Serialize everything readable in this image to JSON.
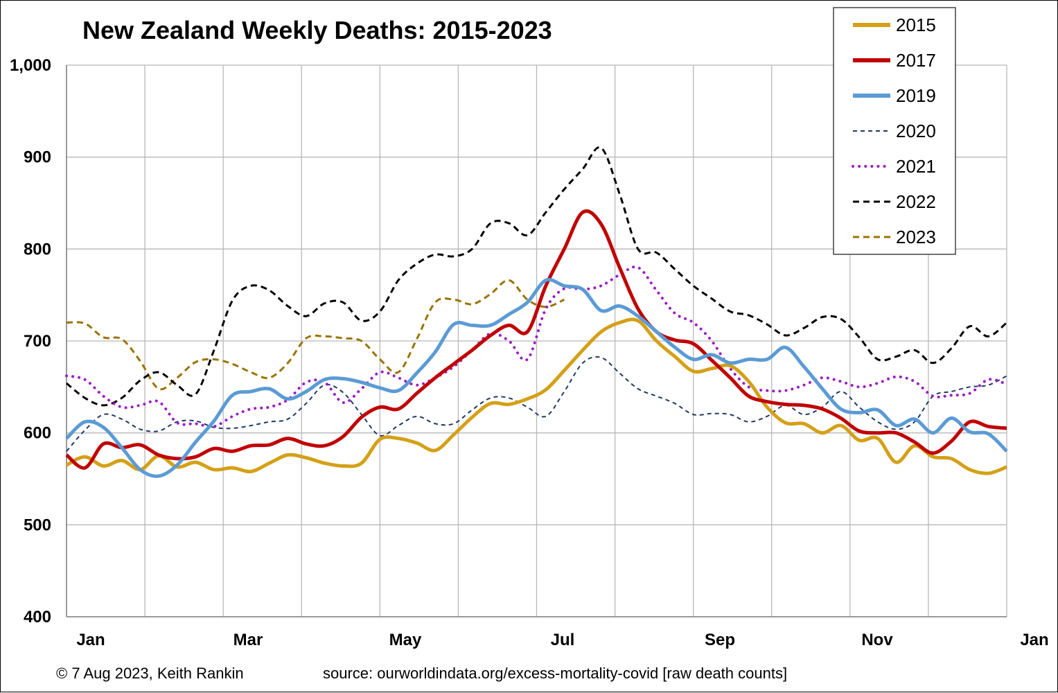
{
  "footer": {
    "copyright": "© 7 Aug 2023, Keith Rankin",
    "source": "source: ourworldindata.org/excess-mortality-covid [raw death counts]"
  },
  "chart_data": {
    "type": "line",
    "title": "New Zealand Weekly Deaths: 2015-2023",
    "xlabel": "",
    "ylabel": "",
    "ylim": [
      400,
      1000
    ],
    "y_ticks": [
      "400",
      "500",
      "600",
      "700",
      "800",
      "900",
      "1,000"
    ],
    "x_ticks": [
      "Jan",
      "Mar",
      "May",
      "Jul",
      "Sep",
      "Nov",
      "Jan"
    ],
    "x_unit": "week of year",
    "xlim": [
      1,
      52
    ],
    "grid": true,
    "legend_position": "top-right",
    "series": [
      {
        "name": "2015",
        "color": "#D4A017",
        "style": "solid",
        "width": 5,
        "x": [
          1,
          2,
          3,
          4,
          5,
          6,
          7,
          8,
          9,
          10,
          11,
          12,
          13,
          14,
          15,
          16,
          17,
          18,
          19,
          20,
          21,
          22,
          23,
          24,
          25,
          26,
          27,
          28,
          29,
          30,
          31,
          32,
          33,
          34,
          35,
          36,
          37,
          38,
          39,
          40,
          41,
          42,
          43,
          44,
          45,
          46,
          47,
          48,
          49,
          50,
          51,
          52
        ],
        "y": [
          565,
          574,
          564,
          570,
          560,
          575,
          563,
          568,
          560,
          562,
          558,
          567,
          576,
          573,
          567,
          564,
          567,
          593,
          594,
          589,
          581,
          598,
          617,
          632,
          631,
          637,
          647,
          668,
          690,
          710,
          720,
          722,
          700,
          683,
          667,
          670,
          673,
          656,
          628,
          611,
          610,
          600,
          608,
          592,
          594,
          568,
          586,
          574,
          572,
          560,
          556,
          563
        ]
      },
      {
        "name": "2017",
        "color": "#C00000",
        "style": "solid",
        "width": 5,
        "x": [
          1,
          2,
          3,
          4,
          5,
          6,
          7,
          8,
          9,
          10,
          11,
          12,
          13,
          14,
          15,
          16,
          17,
          18,
          19,
          20,
          21,
          22,
          23,
          24,
          25,
          26,
          27,
          28,
          29,
          30,
          31,
          32,
          33,
          34,
          35,
          36,
          37,
          38,
          39,
          40,
          41,
          42,
          43,
          44,
          45,
          46,
          47,
          48,
          49,
          50,
          51,
          52
        ],
        "y": [
          576,
          562,
          588,
          584,
          587,
          576,
          572,
          574,
          583,
          580,
          586,
          587,
          594,
          588,
          586,
          596,
          617,
          628,
          626,
          643,
          660,
          675,
          690,
          706,
          717,
          710,
          760,
          800,
          840,
          827,
          780,
          735,
          710,
          701,
          697,
          679,
          660,
          640,
          634,
          631,
          630,
          626,
          616,
          602,
          600,
          600,
          590,
          578,
          591,
          612,
          607,
          605
        ]
      },
      {
        "name": "2019",
        "color": "#5B9BD5",
        "style": "solid",
        "width": 5,
        "x": [
          1,
          2,
          3,
          4,
          5,
          6,
          7,
          8,
          9,
          10,
          11,
          12,
          13,
          14,
          15,
          16,
          17,
          18,
          19,
          20,
          21,
          22,
          23,
          24,
          25,
          26,
          27,
          28,
          29,
          30,
          31,
          32,
          33,
          34,
          35,
          36,
          37,
          38,
          39,
          40,
          41,
          42,
          43,
          44,
          45,
          46,
          47,
          48,
          49,
          50,
          51,
          52
        ],
        "y": [
          594,
          612,
          606,
          584,
          560,
          553,
          565,
          590,
          613,
          641,
          645,
          648,
          637,
          645,
          658,
          659,
          655,
          649,
          646,
          665,
          688,
          718,
          717,
          717,
          729,
          742,
          766,
          760,
          756,
          733,
          738,
          727,
          710,
          693,
          680,
          685,
          676,
          680,
          680,
          693,
          672,
          648,
          626,
          622,
          625,
          608,
          615,
          600,
          616,
          601,
          599,
          580
        ]
      },
      {
        "name": "2020",
        "color": "#1F3864",
        "style": "dashed-fine",
        "width": 2,
        "x": [
          1,
          2,
          3,
          4,
          5,
          6,
          7,
          8,
          9,
          10,
          11,
          12,
          13,
          14,
          15,
          16,
          17,
          18,
          19,
          20,
          21,
          22,
          23,
          24,
          25,
          26,
          27,
          28,
          29,
          30,
          31,
          32,
          33,
          34,
          35,
          36,
          37,
          38,
          39,
          40,
          41,
          42,
          43,
          44,
          45,
          46,
          47,
          48,
          49,
          50,
          51,
          52
        ],
        "y": [
          580,
          603,
          620,
          615,
          604,
          602,
          612,
          613,
          606,
          605,
          608,
          612,
          615,
          632,
          652,
          644,
          620,
          597,
          608,
          618,
          610,
          610,
          625,
          638,
          638,
          628,
          618,
          645,
          676,
          682,
          665,
          648,
          640,
          632,
          620,
          621,
          620,
          612,
          618,
          630,
          620,
          628,
          645,
          628,
          612,
          604,
          612,
          640,
          645,
          650,
          652,
          662
        ]
      },
      {
        "name": "2021",
        "color": "#9B1BC7",
        "style": "dotted",
        "width": 4,
        "x": [
          1,
          2,
          3,
          4,
          5,
          6,
          7,
          8,
          9,
          10,
          11,
          12,
          13,
          14,
          15,
          16,
          17,
          18,
          19,
          20,
          21,
          22,
          23,
          24,
          25,
          26,
          27,
          28,
          29,
          30,
          31,
          32,
          33,
          34,
          35,
          36,
          37,
          38,
          39,
          40,
          41,
          42,
          43,
          44,
          45,
          46,
          47,
          48,
          49,
          50,
          51,
          52
        ],
        "y": [
          662,
          658,
          640,
          628,
          630,
          634,
          611,
          610,
          607,
          618,
          626,
          628,
          636,
          655,
          655,
          633,
          648,
          666,
          660,
          652,
          660,
          672,
          690,
          708,
          700,
          680,
          735,
          757,
          756,
          760,
          772,
          780,
          755,
          730,
          720,
          700,
          670,
          650,
          646,
          646,
          652,
          660,
          656,
          650,
          654,
          661,
          656,
          640,
          641,
          643,
          658,
          653
        ]
      },
      {
        "name": "2022",
        "color": "#000000",
        "style": "dashed",
        "width": 3,
        "x": [
          1,
          2,
          3,
          4,
          5,
          6,
          7,
          8,
          9,
          10,
          11,
          12,
          13,
          14,
          15,
          16,
          17,
          18,
          19,
          20,
          21,
          22,
          23,
          24,
          25,
          26,
          27,
          28,
          29,
          30,
          31,
          32,
          33,
          34,
          35,
          36,
          37,
          38,
          39,
          40,
          41,
          42,
          43,
          44,
          45,
          46,
          47,
          48,
          49,
          50,
          51,
          52
        ],
        "y": [
          654,
          638,
          630,
          638,
          657,
          666,
          652,
          642,
          690,
          744,
          760,
          755,
          738,
          727,
          741,
          742,
          722,
          732,
          766,
          784,
          794,
          792,
          800,
          828,
          828,
          815,
          840,
          865,
          887,
          910,
          860,
          800,
          796,
          778,
          760,
          746,
          732,
          728,
          718,
          706,
          714,
          726,
          724,
          704,
          680,
          683,
          690,
          676,
          692,
          716,
          705,
          720
        ]
      },
      {
        "name": "2023",
        "color": "#997300",
        "style": "dashed",
        "width": 3,
        "x": [
          1,
          2,
          3,
          4,
          5,
          6,
          7,
          8,
          9,
          10,
          11,
          12,
          13,
          14,
          15,
          16,
          17,
          18,
          19,
          20,
          21,
          22,
          23,
          24,
          25,
          26,
          27,
          28
        ],
        "y": [
          720,
          719,
          704,
          702,
          678,
          648,
          660,
          677,
          680,
          675,
          666,
          660,
          676,
          703,
          705,
          703,
          700,
          680,
          666,
          702,
          742,
          745,
          740,
          751,
          766,
          745,
          737,
          745
        ]
      }
    ]
  }
}
